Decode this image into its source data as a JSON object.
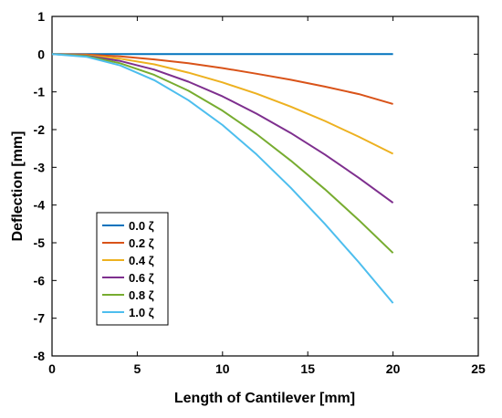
{
  "chart_data": {
    "type": "line",
    "title": "",
    "xlabel": "Length of Cantilever [mm]",
    "ylabel": "Deflection [mm]",
    "xlim": [
      0,
      25
    ],
    "ylim": [
      -8,
      1
    ],
    "xticks": [
      0,
      5,
      10,
      15,
      20,
      25
    ],
    "yticks": [
      1,
      0,
      -1,
      -2,
      -3,
      -4,
      -5,
      -6,
      -7,
      -8
    ],
    "grid": false,
    "legend_position": "lower-left",
    "series": [
      {
        "name": "0.0 ζ",
        "color": "#0072BD",
        "x": [
          0,
          2,
          4,
          6,
          8,
          10,
          12,
          14,
          16,
          18,
          20
        ],
        "y": [
          0,
          0,
          0,
          0,
          0,
          0,
          0,
          0,
          0,
          0,
          0
        ]
      },
      {
        "name": "0.2 ζ",
        "color": "#D95319",
        "x": [
          0,
          2,
          4,
          6,
          8,
          10,
          12,
          14,
          16,
          18,
          20
        ],
        "y": [
          0,
          -0.01,
          -0.06,
          -0.14,
          -0.24,
          -0.37,
          -0.52,
          -0.68,
          -0.86,
          -1.06,
          -1.32
        ]
      },
      {
        "name": "0.4 ζ",
        "color": "#EDB120",
        "x": [
          0,
          2,
          4,
          6,
          8,
          10,
          12,
          14,
          16,
          18,
          20
        ],
        "y": [
          0,
          -0.03,
          -0.12,
          -0.27,
          -0.49,
          -0.75,
          -1.05,
          -1.39,
          -1.77,
          -2.19,
          -2.64
        ]
      },
      {
        "name": "0.6 ζ",
        "color": "#7E2F8E",
        "x": [
          0,
          2,
          4,
          6,
          8,
          10,
          12,
          14,
          16,
          18,
          20
        ],
        "y": [
          0,
          -0.04,
          -0.18,
          -0.41,
          -0.73,
          -1.12,
          -1.58,
          -2.09,
          -2.66,
          -3.28,
          -3.94
        ]
      },
      {
        "name": "0.8 ζ",
        "color": "#77AC30",
        "x": [
          0,
          2,
          4,
          6,
          8,
          10,
          12,
          14,
          16,
          18,
          20
        ],
        "y": [
          0,
          -0.05,
          -0.24,
          -0.55,
          -0.97,
          -1.5,
          -2.12,
          -2.82,
          -3.58,
          -4.4,
          -5.27
        ]
      },
      {
        "name": "1.0 ζ",
        "color": "#4DBEEE",
        "x": [
          0,
          2,
          4,
          6,
          8,
          10,
          12,
          14,
          16,
          18,
          20
        ],
        "y": [
          0,
          -0.07,
          -0.3,
          -0.69,
          -1.22,
          -1.88,
          -2.66,
          -3.54,
          -4.5,
          -5.52,
          -6.6
        ]
      }
    ]
  }
}
